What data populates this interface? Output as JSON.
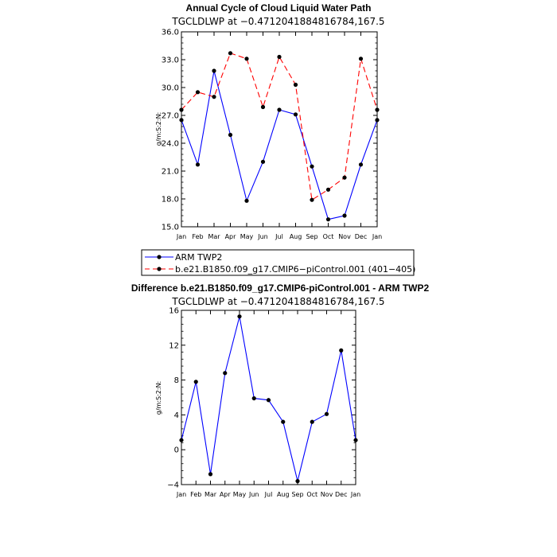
{
  "chart_data": [
    {
      "type": "line",
      "title": "Annual Cycle of Cloud Liquid Water Path",
      "subtitle": "TGCLDLWP at −0.4712041884816784,167.5",
      "ylabel": "g/m:S:2:N:",
      "ylim": [
        15.0,
        36.0
      ],
      "yticks": [
        "15.0",
        "18.0",
        "21.0",
        "24.0",
        "27.0",
        "30.0",
        "33.0",
        "36.0"
      ],
      "categories": [
        "Jan",
        "Feb",
        "Mar",
        "Apr",
        "May",
        "Jun",
        "Jul",
        "Aug",
        "Sep",
        "Oct",
        "Nov",
        "Dec",
        "Jan"
      ],
      "series": [
        {
          "name": "ARM TWP2",
          "color": "#0000ff",
          "dash": "solid",
          "values": [
            26.5,
            21.7,
            31.8,
            24.9,
            17.8,
            22.0,
            27.6,
            27.1,
            21.5,
            15.8,
            16.2,
            21.7,
            26.5
          ]
        },
        {
          "name": "b.e21.B1850.f09_g17.CMIP6−piControl.001 (401−405)",
          "color": "#ff0000",
          "dash": "dashed",
          "values": [
            27.6,
            29.5,
            29.0,
            33.7,
            33.1,
            27.9,
            33.3,
            30.3,
            17.9,
            19.0,
            20.3,
            33.1,
            27.6
          ]
        }
      ],
      "legend": "below"
    },
    {
      "type": "line",
      "title": "Difference b.e21.B1850.f09_g17.CMIP6-piControl.001 - ARM TWP2",
      "subtitle": "TGCLDLWP at −0.4712041884816784,167.5",
      "ylabel": "g/m:S:2:N:",
      "ylim": [
        -4,
        16
      ],
      "yticks": [
        "−4",
        "0",
        "4",
        "8",
        "12",
        "16"
      ],
      "categories": [
        "Jan",
        "Feb",
        "Mar",
        "Apr",
        "May",
        "Jun",
        "Jul",
        "Aug",
        "Sep",
        "Oct",
        "Nov",
        "Dec",
        "Jan"
      ],
      "series": [
        {
          "color": "#0000ff",
          "dash": "solid",
          "values": [
            1.1,
            7.8,
            -2.8,
            8.8,
            15.3,
            5.9,
            5.7,
            3.2,
            -3.6,
            3.2,
            4.1,
            11.4,
            1.1
          ]
        }
      ]
    }
  ]
}
